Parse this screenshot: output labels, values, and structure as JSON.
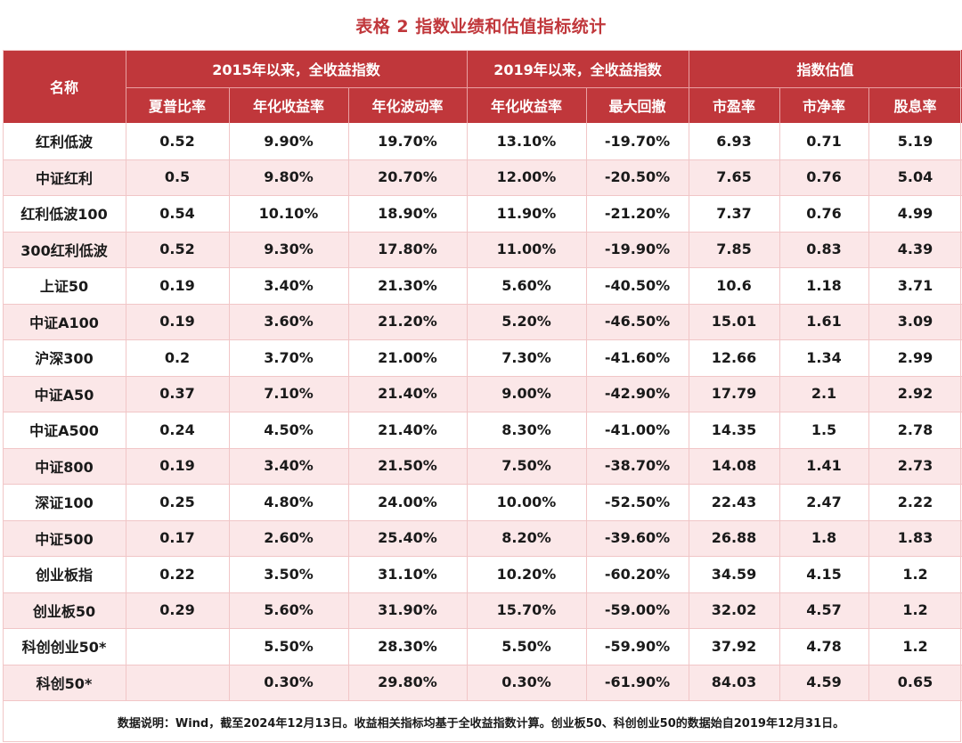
{
  "title": "表格 2 指数业绩和估值指标统计",
  "header": {
    "name_label": "名称",
    "groups": [
      "2015年以来，全收益指数",
      "2019年以来，全收益指数",
      "指数估值"
    ],
    "columns": [
      "夏普比率",
      "年化收益率",
      "年化波动率",
      "年化收益率",
      "最大回撤",
      "市盈率",
      "市净率",
      "股息率"
    ]
  },
  "rows": [
    [
      "红利低波",
      "0.52",
      "9.90%",
      "19.70%",
      "13.10%",
      "-19.70%",
      "6.93",
      "0.71",
      "5.19"
    ],
    [
      "中证红利",
      "0.5",
      "9.80%",
      "20.70%",
      "12.00%",
      "-20.50%",
      "7.65",
      "0.76",
      "5.04"
    ],
    [
      "红利低波100",
      "0.54",
      "10.10%",
      "18.90%",
      "11.90%",
      "-21.20%",
      "7.37",
      "0.76",
      "4.99"
    ],
    [
      "300红利低波",
      "0.52",
      "9.30%",
      "17.80%",
      "11.00%",
      "-19.90%",
      "7.85",
      "0.83",
      "4.39"
    ],
    [
      "上证50",
      "0.19",
      "3.40%",
      "21.30%",
      "5.60%",
      "-40.50%",
      "10.6",
      "1.18",
      "3.71"
    ],
    [
      "中证A100",
      "0.19",
      "3.60%",
      "21.20%",
      "5.20%",
      "-46.50%",
      "15.01",
      "1.61",
      "3.09"
    ],
    [
      "沪深300",
      "0.2",
      "3.70%",
      "21.00%",
      "7.30%",
      "-41.60%",
      "12.66",
      "1.34",
      "2.99"
    ],
    [
      "中证A50",
      "0.37",
      "7.10%",
      "21.40%",
      "9.00%",
      "-42.90%",
      "17.79",
      "2.1",
      "2.92"
    ],
    [
      "中证A500",
      "0.24",
      "4.50%",
      "21.40%",
      "8.30%",
      "-41.00%",
      "14.35",
      "1.5",
      "2.78"
    ],
    [
      "中证800",
      "0.19",
      "3.40%",
      "21.50%",
      "7.50%",
      "-38.70%",
      "14.08",
      "1.41",
      "2.73"
    ],
    [
      "深证100",
      "0.25",
      "4.80%",
      "24.00%",
      "10.00%",
      "-52.50%",
      "22.43",
      "2.47",
      "2.22"
    ],
    [
      "中证500",
      "0.17",
      "2.60%",
      "25.40%",
      "8.20%",
      "-39.60%",
      "26.88",
      "1.8",
      "1.83"
    ],
    [
      "创业板指",
      "0.22",
      "3.50%",
      "31.10%",
      "10.20%",
      "-60.20%",
      "34.59",
      "4.15",
      "1.2"
    ],
    [
      "创业板50",
      "0.29",
      "5.60%",
      "31.90%",
      "15.70%",
      "-59.00%",
      "32.02",
      "4.57",
      "1.2"
    ],
    [
      "科创创业50*",
      "",
      "5.50%",
      "28.30%",
      "5.50%",
      "-59.90%",
      "37.92",
      "4.78",
      "1.2"
    ],
    [
      "科创50*",
      "",
      "0.30%",
      "29.80%",
      "0.30%",
      "-61.90%",
      "84.03",
      "4.59",
      "0.65"
    ]
  ],
  "note": "数据说明：Wind，截至2024年12月13日。收益相关指标均基于全收益指数计算。创业板50、科创创业50的数据始自2019年12月31日。",
  "colors": {
    "accent": "#c0373b",
    "stripe": "#fbe7e8",
    "grid": "#f1c6c7"
  }
}
